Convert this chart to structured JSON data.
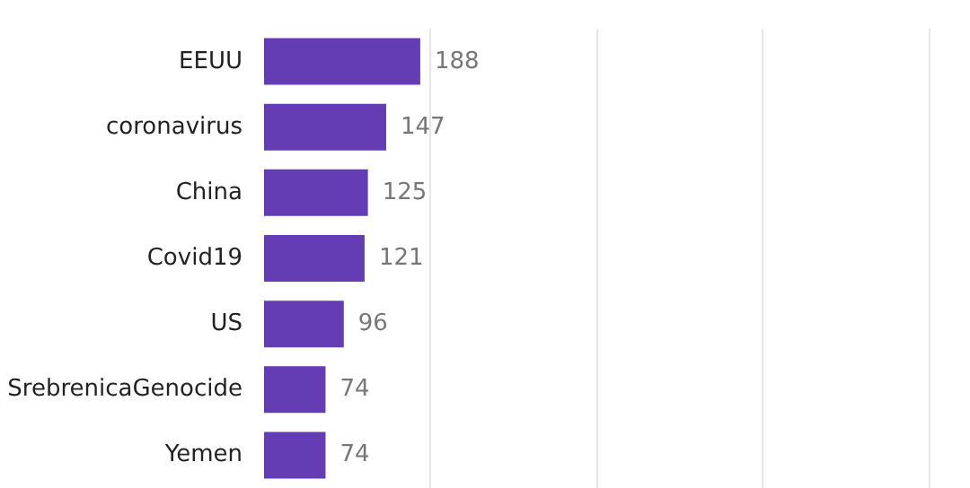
{
  "chart_data": {
    "type": "bar",
    "orientation": "horizontal",
    "categories": [
      "EEUU",
      "coronavirus",
      "China",
      "Covid19",
      "US",
      "SrebrenicaGenocide",
      "Yemen"
    ],
    "values": [
      188,
      147,
      125,
      121,
      96,
      74,
      74
    ],
    "color": "#643cb4",
    "xlim": [
      0,
      800
    ],
    "xticks": [
      {
        "value": 200,
        "label": null
      },
      {
        "value": 400,
        "label": null
      },
      {
        "value": 600,
        "label": null
      },
      {
        "value": 800,
        "label": null
      }
    ],
    "grid": "x",
    "data_labels": true,
    "tick_labels": "y"
  }
}
